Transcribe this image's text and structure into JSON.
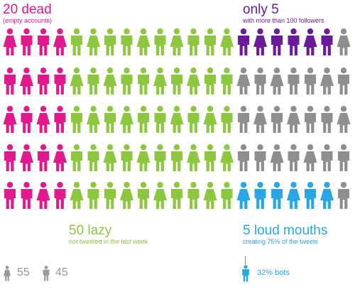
{
  "colors": {
    "dead": "#e2198c",
    "lazy": "#8dc63f",
    "followers": "#6a1b9a",
    "plain": "#8e8e8e",
    "loud": "#29a6e5",
    "legend": "#9a9a9a"
  },
  "figure": {
    "rows": 5,
    "cols": 21,
    "figure_types": [
      "male-figure-icon",
      "female-figure-icon"
    ],
    "groups": [
      {
        "name": "dead",
        "count": 20,
        "color_key": "dead"
      },
      {
        "name": "lazy",
        "count": 50,
        "color_key": "lazy"
      },
      {
        "name": "followers",
        "count": 5,
        "color_key": "followers"
      },
      {
        "name": "loud",
        "count": 5,
        "color_key": "loud"
      },
      {
        "name": "other",
        "count": 20,
        "color_key": "plain"
      }
    ]
  },
  "labels": {
    "dead": {
      "title": "20 dead",
      "subtitle": "(empty accounts)"
    },
    "followers": {
      "title": "only 5",
      "subtitle": "with more than 100 followers"
    },
    "lazy": {
      "title": "50 lazy",
      "subtitle": "not tweeted in the last week"
    },
    "loud": {
      "title": "5 loud mouths",
      "subtitle": "creating 75% of the tweets"
    }
  },
  "gender_legend": {
    "female_count": "55",
    "male_count": "45"
  },
  "bots": {
    "text": "32% bots"
  }
}
